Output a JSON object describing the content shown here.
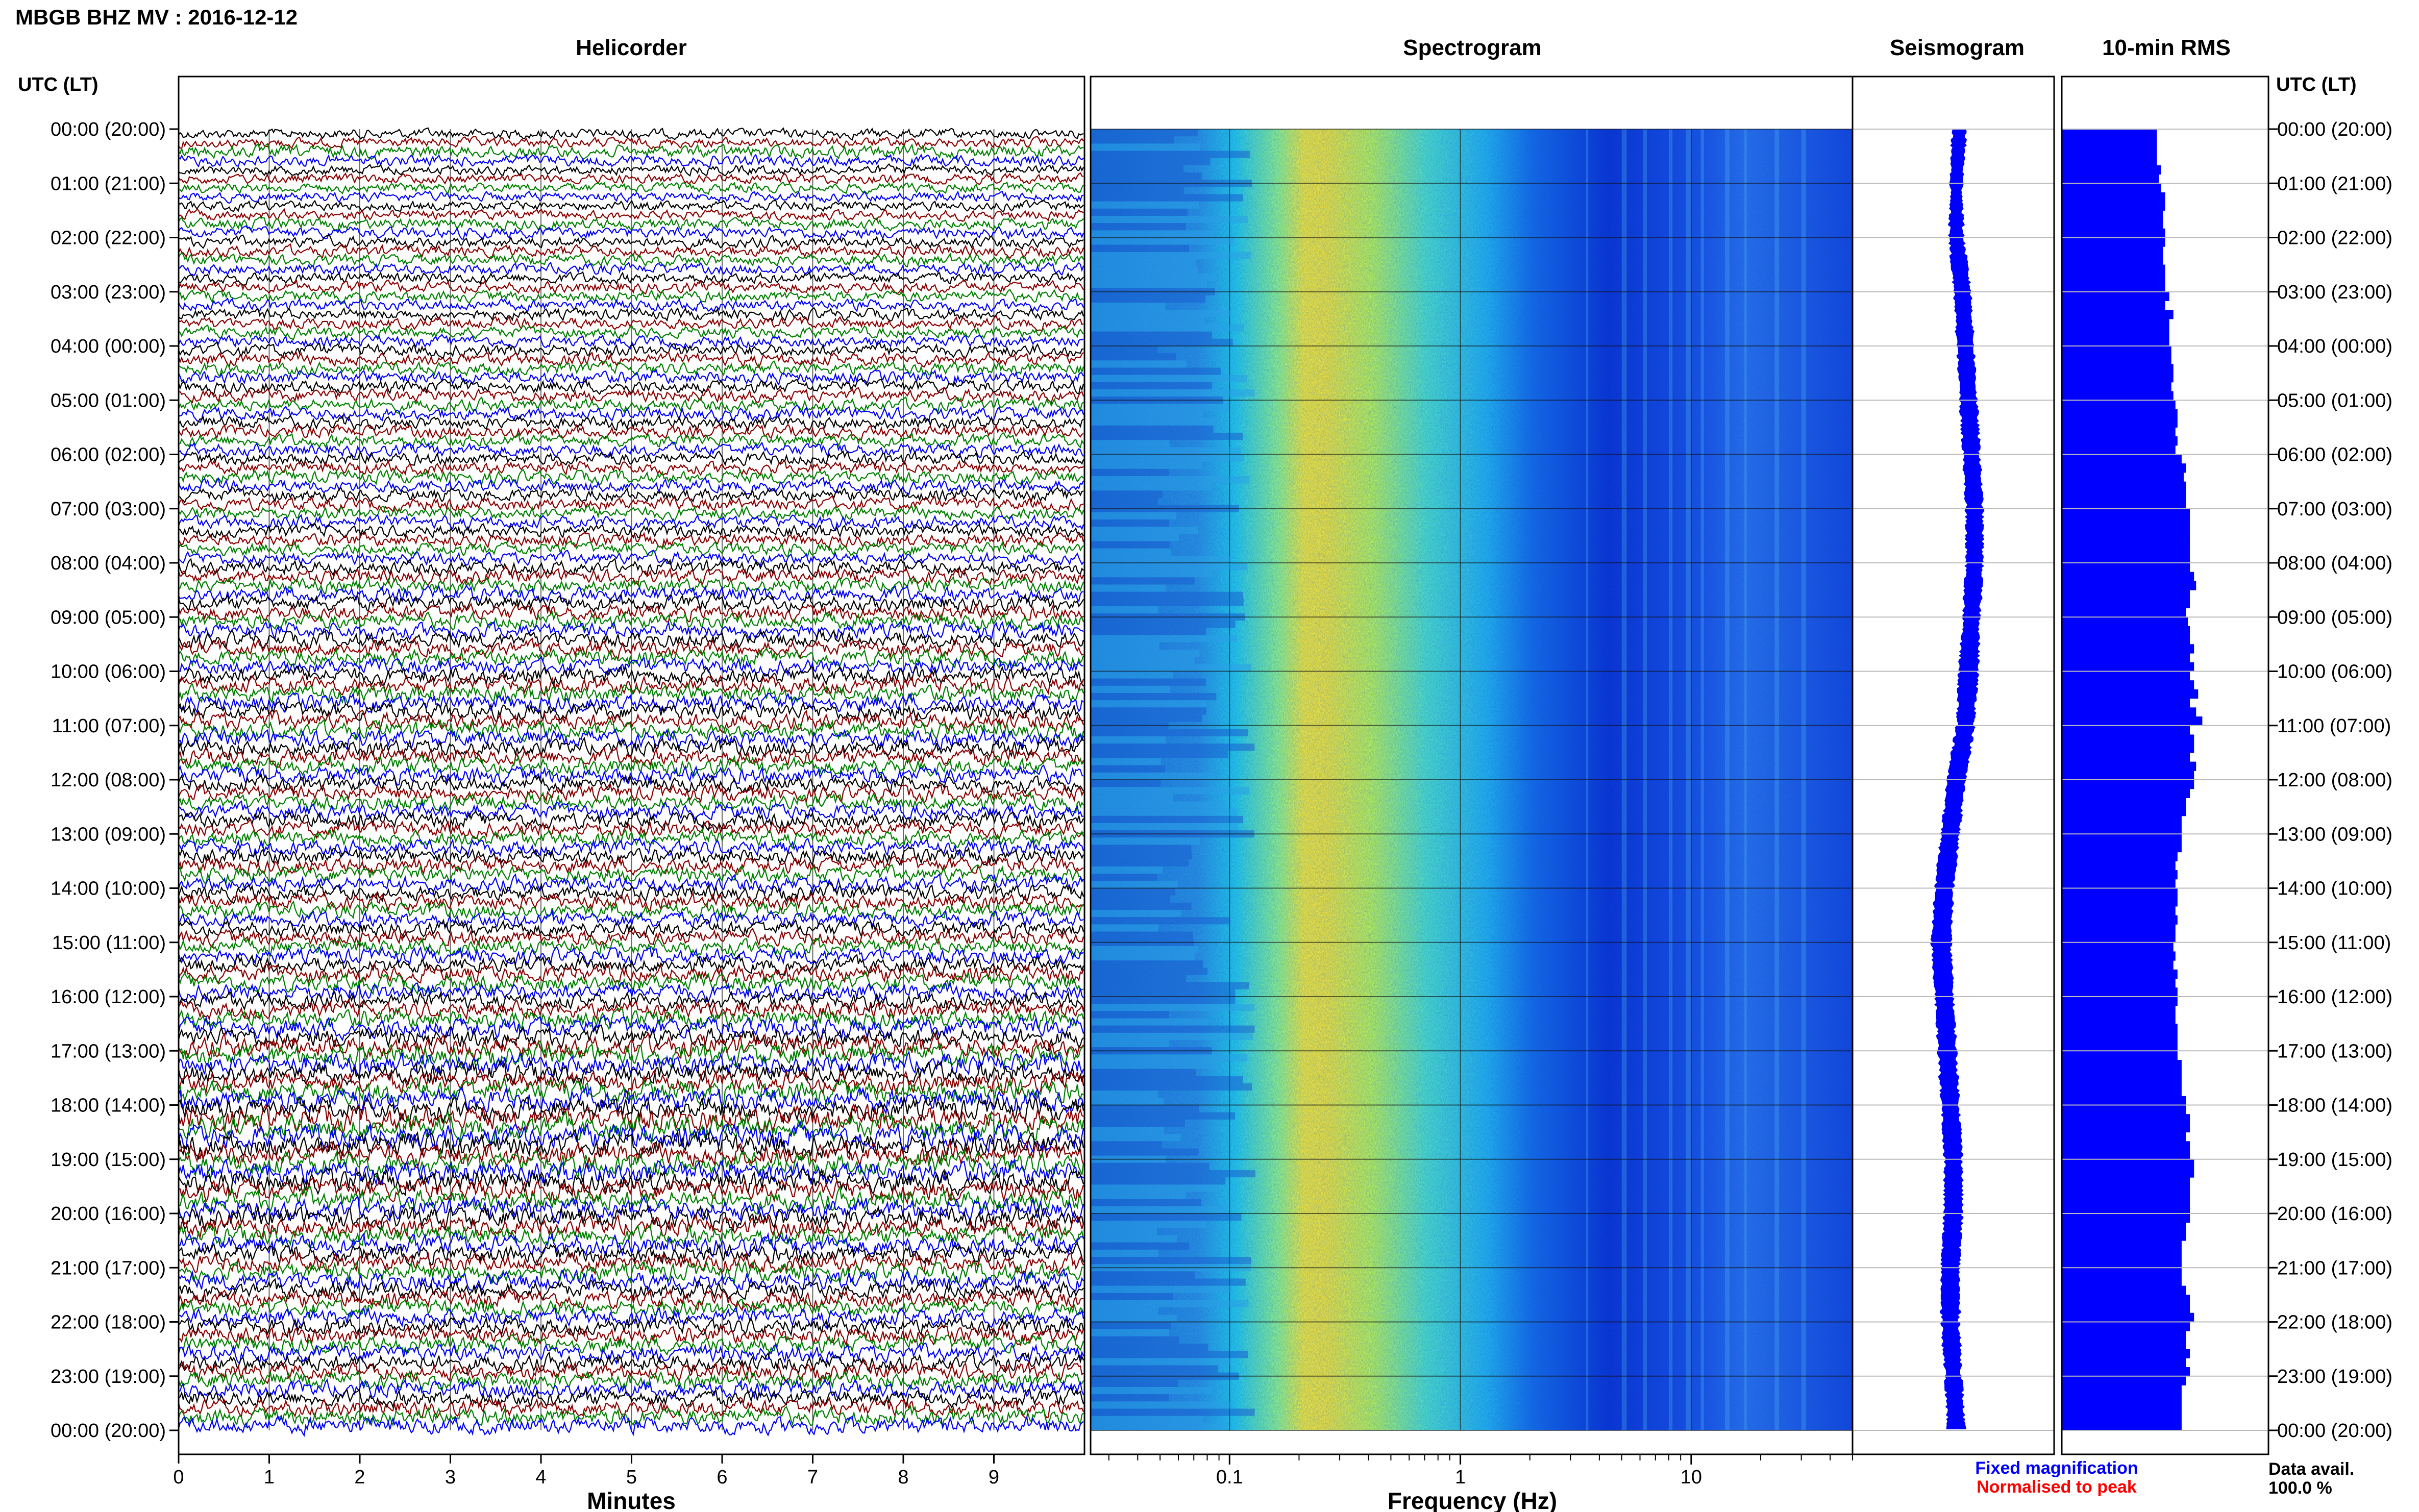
{
  "header": {
    "title": "MBGB BHZ MV : 2016-12-12",
    "left_axis_title": "UTC (LT)",
    "right_axis_title": "UTC (LT)"
  },
  "hour_labels": [
    "00:00 (20:00)",
    "01:00 (21:00)",
    "02:00 (22:00)",
    "03:00 (23:00)",
    "04:00 (00:00)",
    "05:00 (01:00)",
    "06:00 (02:00)",
    "07:00 (03:00)",
    "08:00 (04:00)",
    "09:00 (05:00)",
    "10:00 (06:00)",
    "11:00 (07:00)",
    "12:00 (08:00)",
    "13:00 (09:00)",
    "14:00 (10:00)",
    "15:00 (11:00)",
    "16:00 (12:00)",
    "17:00 (13:00)",
    "18:00 (14:00)",
    "19:00 (15:00)",
    "20:00 (16:00)",
    "21:00 (17:00)",
    "22:00 (18:00)",
    "23:00 (19:00)",
    "00:00 (20:00)"
  ],
  "chart_data": [
    {
      "type": "line",
      "title": "Helicorder",
      "xlabel": "Minutes",
      "xticks": [
        "0",
        "1",
        "2",
        "3",
        "4",
        "5",
        "6",
        "7",
        "8",
        "9"
      ],
      "xlim": [
        0,
        10
      ],
      "trace_colors": [
        "#000000",
        "#8b0000",
        "#008000",
        "#0000ff"
      ],
      "trace_amplitudes": [
        0.35,
        0.35,
        0.45,
        0.4,
        0.35,
        0.35,
        0.35,
        0.35,
        0.35,
        0.35,
        0.4,
        0.4,
        0.4,
        0.4,
        0.4,
        0.4,
        0.4,
        0.4,
        0.4,
        0.4,
        0.4,
        0.4,
        0.4,
        0.4,
        0.45,
        0.45,
        0.45,
        0.45,
        0.45,
        0.45,
        0.45,
        0.45,
        0.45,
        0.45,
        0.45,
        0.45,
        0.45,
        0.45,
        0.45,
        0.45,
        0.45,
        0.45,
        0.45,
        0.45,
        0.45,
        0.45,
        0.45,
        0.45,
        0.5,
        0.5,
        0.5,
        0.55,
        0.55,
        0.55,
        0.55,
        0.55,
        0.55,
        0.55,
        0.55,
        0.55,
        0.6,
        0.6,
        0.6,
        0.6,
        0.6,
        0.6,
        0.6,
        0.6,
        0.6,
        0.6,
        0.6,
        0.6,
        0.55,
        0.55,
        0.55,
        0.55,
        0.55,
        0.55,
        0.55,
        0.55,
        0.55,
        0.55,
        0.55,
        0.55,
        0.55,
        0.55,
        0.55,
        0.55,
        0.55,
        0.55,
        0.55,
        0.55,
        0.55,
        0.6,
        0.6,
        0.6,
        0.6,
        0.6,
        0.65,
        0.7,
        0.7,
        0.75,
        0.75,
        0.75,
        0.75,
        0.75,
        0.8,
        0.8,
        0.8,
        0.85,
        0.85,
        0.85,
        0.85,
        0.8,
        0.8,
        0.8,
        0.8,
        0.75,
        0.75,
        0.75,
        0.75,
        0.7,
        0.7,
        0.7,
        0.65,
        0.65,
        0.65,
        0.65,
        0.6,
        0.6,
        0.6,
        0.6,
        0.6,
        0.6,
        0.6,
        0.6,
        0.6,
        0.6,
        0.6,
        0.6,
        0.6,
        0.6,
        0.6,
        0.6
      ]
    },
    {
      "type": "heatmap",
      "title": "Spectrogram",
      "xlabel": "Frequency (Hz)",
      "xscale": "log",
      "xlim": [
        0.025,
        50
      ],
      "xticks": [
        "0.1",
        "1",
        "10"
      ],
      "yrange_hours": [
        0,
        24
      ],
      "colormap": "jet"
    },
    {
      "type": "line",
      "title": "Seismogram",
      "color": "#0000ff",
      "hours": [
        0,
        1,
        2,
        3,
        4,
        5,
        6,
        7,
        8,
        9,
        10,
        11,
        12,
        13,
        14,
        15,
        16,
        17,
        18,
        19,
        20,
        21,
        22,
        23,
        24
      ],
      "center_offset": [
        0.1,
        0.05,
        0.05,
        0.15,
        0.2,
        0.25,
        0.3,
        0.35,
        0.35,
        0.3,
        0.25,
        0.2,
        0.05,
        -0.05,
        -0.15,
        -0.2,
        -0.15,
        -0.1,
        -0.05,
        0.0,
        0.0,
        -0.05,
        -0.05,
        0.0,
        0.05
      ],
      "half_width": [
        0.12,
        0.1,
        0.12,
        0.14,
        0.14,
        0.14,
        0.14,
        0.14,
        0.14,
        0.14,
        0.16,
        0.15,
        0.15,
        0.15,
        0.15,
        0.16,
        0.15,
        0.15,
        0.15,
        0.15,
        0.15,
        0.15,
        0.15,
        0.14,
        0.14
      ]
    },
    {
      "type": "bar",
      "title": "10-min RMS",
      "color": "#0000ff",
      "orientation": "horizontal",
      "values": [
        0.46,
        0.46,
        0.46,
        0.46,
        0.48,
        0.47,
        0.48,
        0.5,
        0.5,
        0.49,
        0.49,
        0.5,
        0.5,
        0.49,
        0.49,
        0.5,
        0.5,
        0.5,
        0.52,
        0.5,
        0.54,
        0.52,
        0.52,
        0.52,
        0.53,
        0.53,
        0.54,
        0.54,
        0.53,
        0.54,
        0.55,
        0.56,
        0.56,
        0.55,
        0.56,
        0.55,
        0.58,
        0.6,
        0.59,
        0.6,
        0.6,
        0.6,
        0.62,
        0.62,
        0.62,
        0.62,
        0.62,
        0.62,
        0.62,
        0.64,
        0.65,
        0.62,
        0.62,
        0.6,
        0.61,
        0.62,
        0.62,
        0.64,
        0.62,
        0.64,
        0.62,
        0.64,
        0.66,
        0.62,
        0.65,
        0.68,
        0.62,
        0.64,
        0.64,
        0.62,
        0.65,
        0.64,
        0.64,
        0.62,
        0.6,
        0.6,
        0.58,
        0.58,
        0.58,
        0.58,
        0.56,
        0.55,
        0.56,
        0.55,
        0.56,
        0.56,
        0.55,
        0.56,
        0.55,
        0.55,
        0.54,
        0.55,
        0.54,
        0.56,
        0.55,
        0.56,
        0.56,
        0.55,
        0.55,
        0.56,
        0.56,
        0.56,
        0.56,
        0.58,
        0.58,
        0.58,
        0.58,
        0.6,
        0.6,
        0.62,
        0.62,
        0.6,
        0.62,
        0.62,
        0.64,
        0.64,
        0.62,
        0.62,
        0.62,
        0.62,
        0.62,
        0.6,
        0.6,
        0.58,
        0.58,
        0.58,
        0.58,
        0.58,
        0.6,
        0.62,
        0.62,
        0.64,
        0.62,
        0.6,
        0.6,
        0.62,
        0.6,
        0.62,
        0.6,
        0.58,
        0.58,
        0.58,
        0.58,
        0.58
      ]
    }
  ],
  "legend": {
    "fixed": "Fixed magnification",
    "fixed_color": "#0000ff",
    "normalised": "Normalised to peak",
    "normalised_color": "#ff0000"
  },
  "data_avail": {
    "label": "Data avail.",
    "value": "100.0 %"
  }
}
